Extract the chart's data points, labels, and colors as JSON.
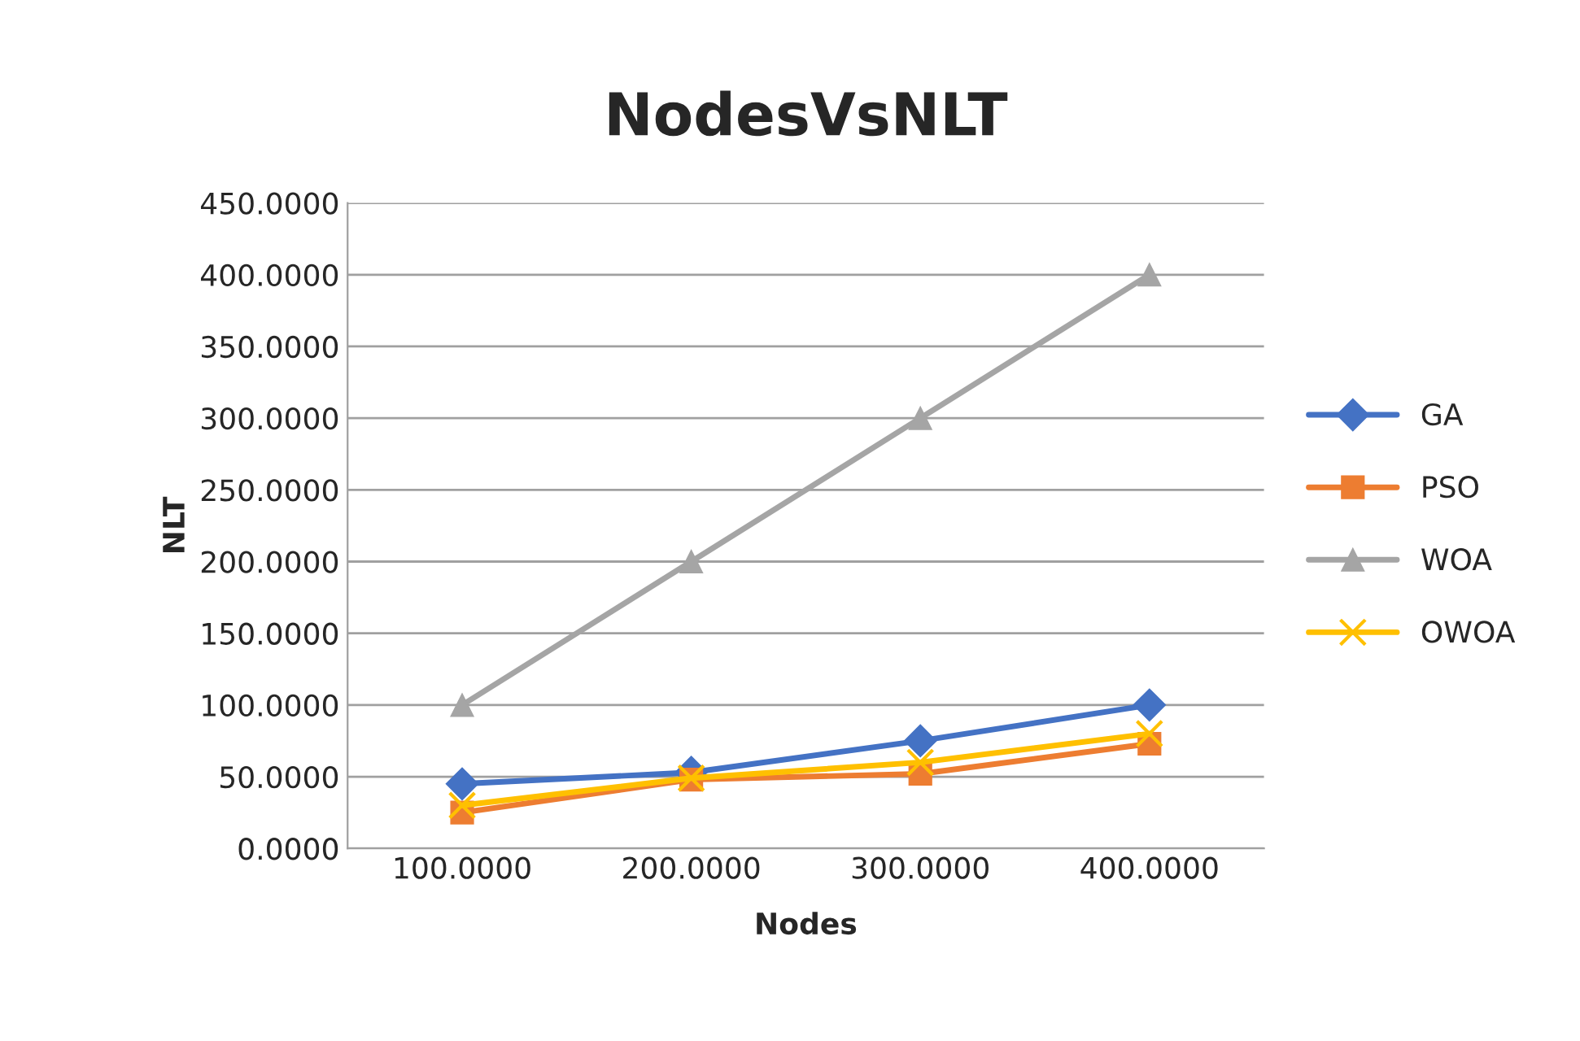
{
  "chart_data": {
    "type": "line",
    "title": "NodesVsNLT",
    "xlabel": "Nodes",
    "ylabel": "NLT",
    "categories": [
      "100.0000",
      "200.0000",
      "300.0000",
      "400.0000"
    ],
    "series": [
      {
        "name": "GA",
        "color": "#4472c4",
        "marker": "diamond",
        "values": [
          45,
          53,
          75,
          100
        ]
      },
      {
        "name": "PSO",
        "color": "#ed7d31",
        "marker": "square",
        "values": [
          25,
          48,
          52,
          73
        ]
      },
      {
        "name": "WOA",
        "color": "#a5a5a5",
        "marker": "triangle",
        "values": [
          100,
          200,
          300,
          400
        ]
      },
      {
        "name": "OWOA",
        "color": "#ffc000",
        "marker": "cross",
        "values": [
          30,
          49,
          60,
          80
        ]
      }
    ],
    "ylim": [
      0,
      450
    ],
    "yticks": [
      {
        "value": 0,
        "label": "0.0000"
      },
      {
        "value": 50,
        "label": "50.0000"
      },
      {
        "value": 100,
        "label": "100.0000"
      },
      {
        "value": 150,
        "label": "150.0000"
      },
      {
        "value": 200,
        "label": "200.0000"
      },
      {
        "value": 250,
        "label": "250.0000"
      },
      {
        "value": 300,
        "label": "300.0000"
      },
      {
        "value": 350,
        "label": "350.0000"
      },
      {
        "value": 400,
        "label": "400.0000"
      },
      {
        "value": 450,
        "label": "450.0000"
      }
    ],
    "grid": "y",
    "legend": "right",
    "line_style": "solid"
  }
}
